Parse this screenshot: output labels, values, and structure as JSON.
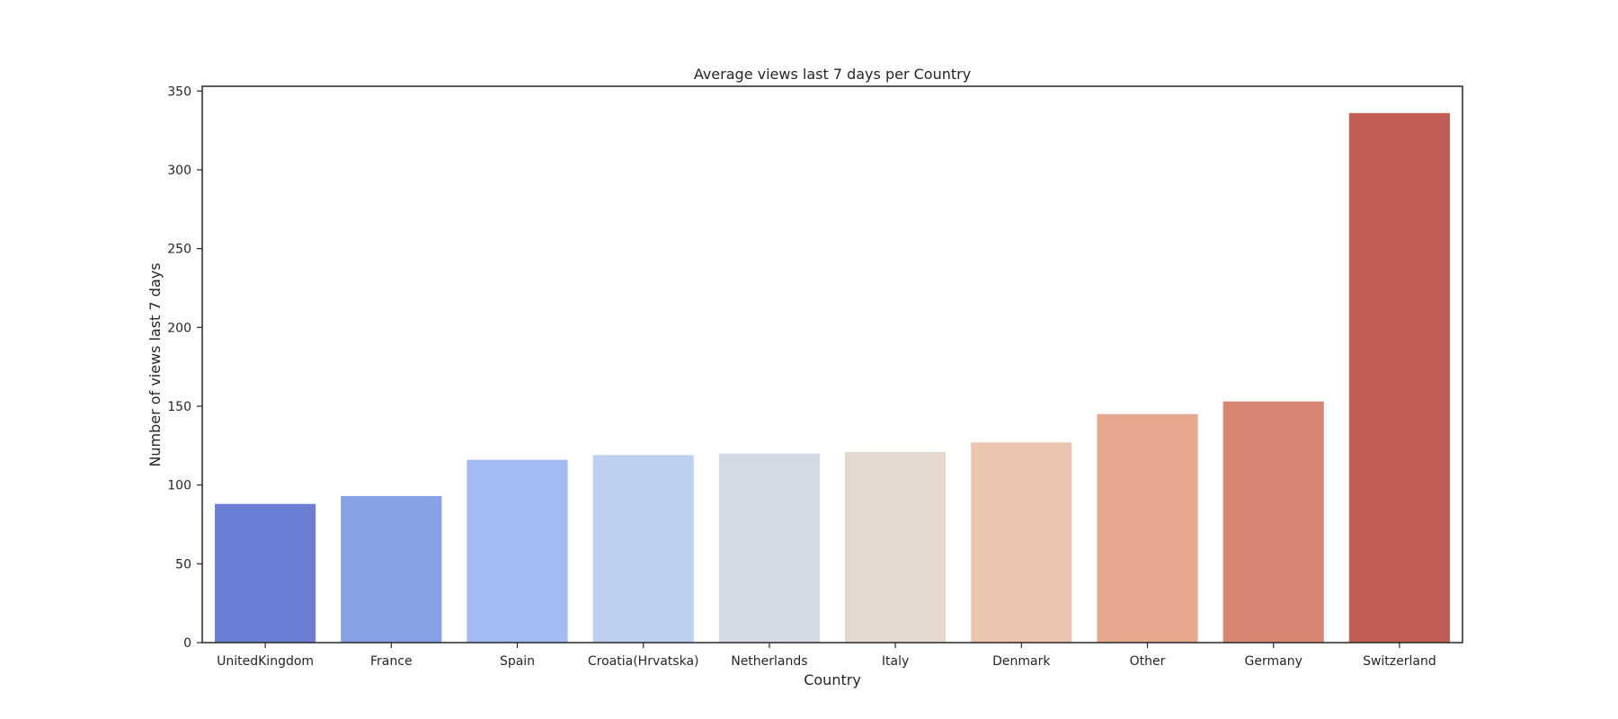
{
  "chart_data": {
    "type": "bar",
    "title": "Average views last 7 days per Country",
    "xlabel": "Country",
    "ylabel": "Number of views last 7 days",
    "categories": [
      "UnitedKingdom",
      "France",
      "Spain",
      "Croatia(Hrvatska)",
      "Netherlands",
      "Italy",
      "Denmark",
      "Other",
      "Germany",
      "Switzerland"
    ],
    "values": [
      88,
      93,
      116,
      119,
      120,
      121,
      127,
      145,
      153,
      336
    ],
    "colors": [
      "#6a7fd3",
      "#86a1e4",
      "#a4bbf2",
      "#bdd0f2",
      "#d4dbe6",
      "#e4d8cf",
      "#ecc4af",
      "#e6a88f",
      "#d88672",
      "#c15e53"
    ],
    "ylim": [
      0,
      353
    ],
    "yticks": [
      0,
      50,
      100,
      150,
      200,
      250,
      300,
      350
    ],
    "grid": false,
    "legend": "none"
  }
}
